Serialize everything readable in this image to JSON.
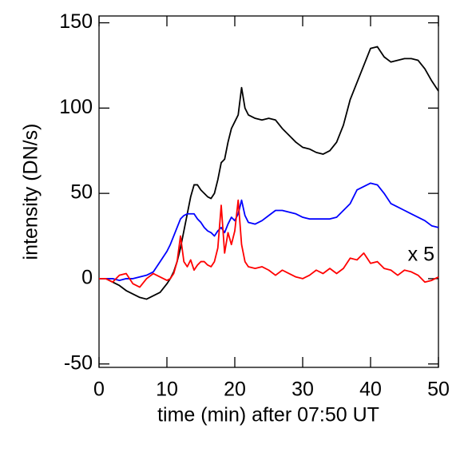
{
  "chart_data": {
    "type": "line",
    "xlabel": "time (min) after 07:50 UT",
    "ylabel": "intensity (DN/s)",
    "annotation": "x 5",
    "annotation_color": "#ff0000",
    "x": [
      0,
      1,
      2,
      3,
      4,
      5,
      6,
      7,
      8,
      9,
      10,
      10.5,
      11,
      11.5,
      12,
      12.5,
      13,
      13.5,
      14,
      14.5,
      15,
      15.5,
      16,
      16.5,
      17,
      17.5,
      18,
      18.5,
      19,
      19.5,
      20,
      20.5,
      21,
      21.5,
      22,
      23,
      24,
      25,
      26,
      27,
      28,
      29,
      30,
      31,
      32,
      33,
      34,
      35,
      36,
      37,
      38,
      39,
      40,
      41,
      42,
      43,
      44,
      45,
      46,
      47,
      48,
      49,
      50
    ],
    "series": [
      {
        "color": "#000000",
        "values": [
          0,
          0,
          -2,
          -4,
          -7,
          -9,
          -11,
          -12,
          -10,
          -8,
          -3,
          0,
          4,
          10,
          18,
          28,
          38,
          48,
          55,
          55,
          52,
          50,
          48,
          47,
          50,
          58,
          68,
          70,
          80,
          88,
          92,
          96,
          112,
          100,
          96,
          94,
          93,
          94,
          93,
          88,
          84,
          80,
          77,
          76,
          74,
          73,
          75,
          80,
          90,
          105,
          115,
          125,
          135,
          136,
          130,
          127,
          128,
          129,
          129,
          128,
          123,
          116,
          110
        ]
      },
      {
        "color": "#0000ff",
        "values": [
          0,
          0,
          0,
          -1,
          0,
          0,
          1,
          2,
          4,
          10,
          16,
          20,
          25,
          30,
          35,
          37,
          38,
          38,
          38,
          35,
          33,
          30,
          28,
          27,
          25,
          28,
          30,
          27,
          32,
          36,
          34,
          38,
          46,
          37,
          33,
          32,
          34,
          37,
          40,
          40,
          39,
          38,
          36,
          35,
          35,
          35,
          35,
          36,
          40,
          44,
          52,
          54,
          56,
          55,
          50,
          44,
          42,
          40,
          38,
          36,
          34,
          31,
          30
        ]
      },
      {
        "color": "#ff0000",
        "values": [
          0,
          0,
          -2,
          2,
          3,
          -3,
          -5,
          0,
          3,
          1,
          -1,
          0,
          3,
          10,
          25,
          10,
          7,
          11,
          5,
          8,
          10,
          10,
          8,
          7,
          10,
          18,
          43,
          15,
          27,
          20,
          28,
          46,
          20,
          10,
          7,
          6,
          7,
          5,
          2,
          5,
          3,
          1,
          0,
          2,
          5,
          3,
          6,
          3,
          6,
          12,
          11,
          15,
          9,
          10,
          6,
          5,
          2,
          5,
          4,
          2,
          -2,
          -1,
          1
        ]
      }
    ],
    "xlim": [
      0,
      50
    ],
    "xticks": [
      0,
      10,
      20,
      30,
      40,
      50
    ],
    "ylim": [
      -52,
      154
    ],
    "yticks": [
      -50,
      0,
      50,
      100,
      150
    ]
  }
}
